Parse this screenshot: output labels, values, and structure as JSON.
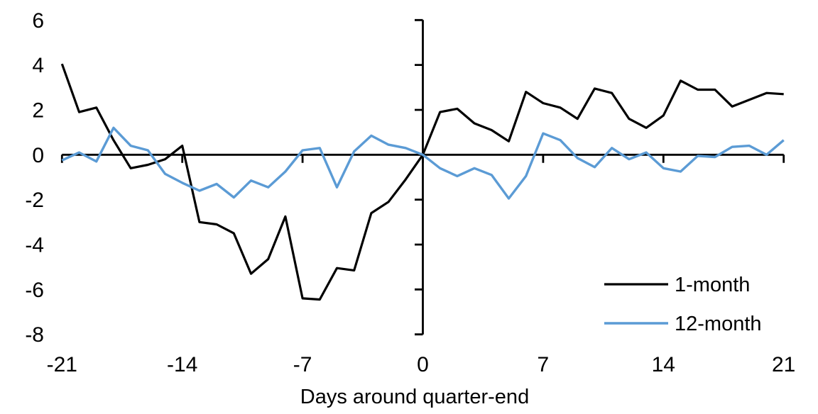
{
  "chart_data": {
    "type": "line",
    "title": "",
    "xlabel": "Days around quarter-end",
    "ylabel": "",
    "xlim": [
      -21,
      21
    ],
    "ylim": [
      -8,
      6
    ],
    "grid": false,
    "legend_position": "lower-right",
    "axis_color": "#000000",
    "x_tick_labels": [
      "-21",
      "-14",
      "-7",
      "0",
      "7",
      "14",
      "21"
    ],
    "x_tick_values": [
      -21,
      -14,
      -7,
      0,
      7,
      14,
      21
    ],
    "y_tick_labels": [
      "6",
      "4",
      "2",
      "0",
      "-2",
      "-4",
      "-6",
      "-8"
    ],
    "y_tick_values": [
      6,
      4,
      2,
      0,
      -2,
      -4,
      -6,
      -8
    ],
    "x": [
      -21,
      -20,
      -19,
      -18,
      -17,
      -16,
      -15,
      -14,
      -13,
      -12,
      -11,
      -10,
      -9,
      -8,
      -7,
      -6,
      -5,
      -4,
      -3,
      -2,
      -1,
      0,
      1,
      2,
      3,
      4,
      5,
      6,
      7,
      8,
      9,
      10,
      11,
      12,
      13,
      14,
      15,
      16,
      17,
      18,
      19,
      20,
      21
    ],
    "series": [
      {
        "name": "1-month",
        "color": "#000000",
        "values": [
          4.05,
          1.9,
          2.1,
          0.65,
          -0.6,
          -0.45,
          -0.2,
          0.4,
          -3.0,
          -3.1,
          -3.5,
          -5.3,
          -4.65,
          -2.75,
          -6.4,
          -6.45,
          -5.05,
          -5.15,
          -2.6,
          -2.1,
          -1.1,
          0,
          1.9,
          2.05,
          1.4,
          1.1,
          0.6,
          2.8,
          2.3,
          2.1,
          1.6,
          2.95,
          2.75,
          1.6,
          1.2,
          1.75,
          3.3,
          2.9,
          2.9,
          2.15,
          2.45,
          2.75,
          2.7
        ]
      },
      {
        "name": "12-month",
        "color": "#5B9BD5",
        "values": [
          -0.25,
          0.1,
          -0.3,
          1.2,
          0.4,
          0.2,
          -0.85,
          -1.25,
          -1.6,
          -1.3,
          -1.9,
          -1.15,
          -1.45,
          -0.75,
          0.2,
          0.3,
          -1.45,
          0.15,
          0.85,
          0.45,
          0.3,
          0,
          -0.6,
          -0.95,
          -0.6,
          -0.9,
          -1.95,
          -0.95,
          0.95,
          0.65,
          -0.15,
          -0.55,
          0.3,
          -0.2,
          0.1,
          -0.6,
          -0.75,
          -0.05,
          -0.1,
          0.35,
          0.4,
          0.0,
          0.65
        ]
      }
    ],
    "legend": [
      {
        "label": "1-month",
        "color": "#000000"
      },
      {
        "label": "12-month",
        "color": "#5B9BD5"
      }
    ]
  }
}
